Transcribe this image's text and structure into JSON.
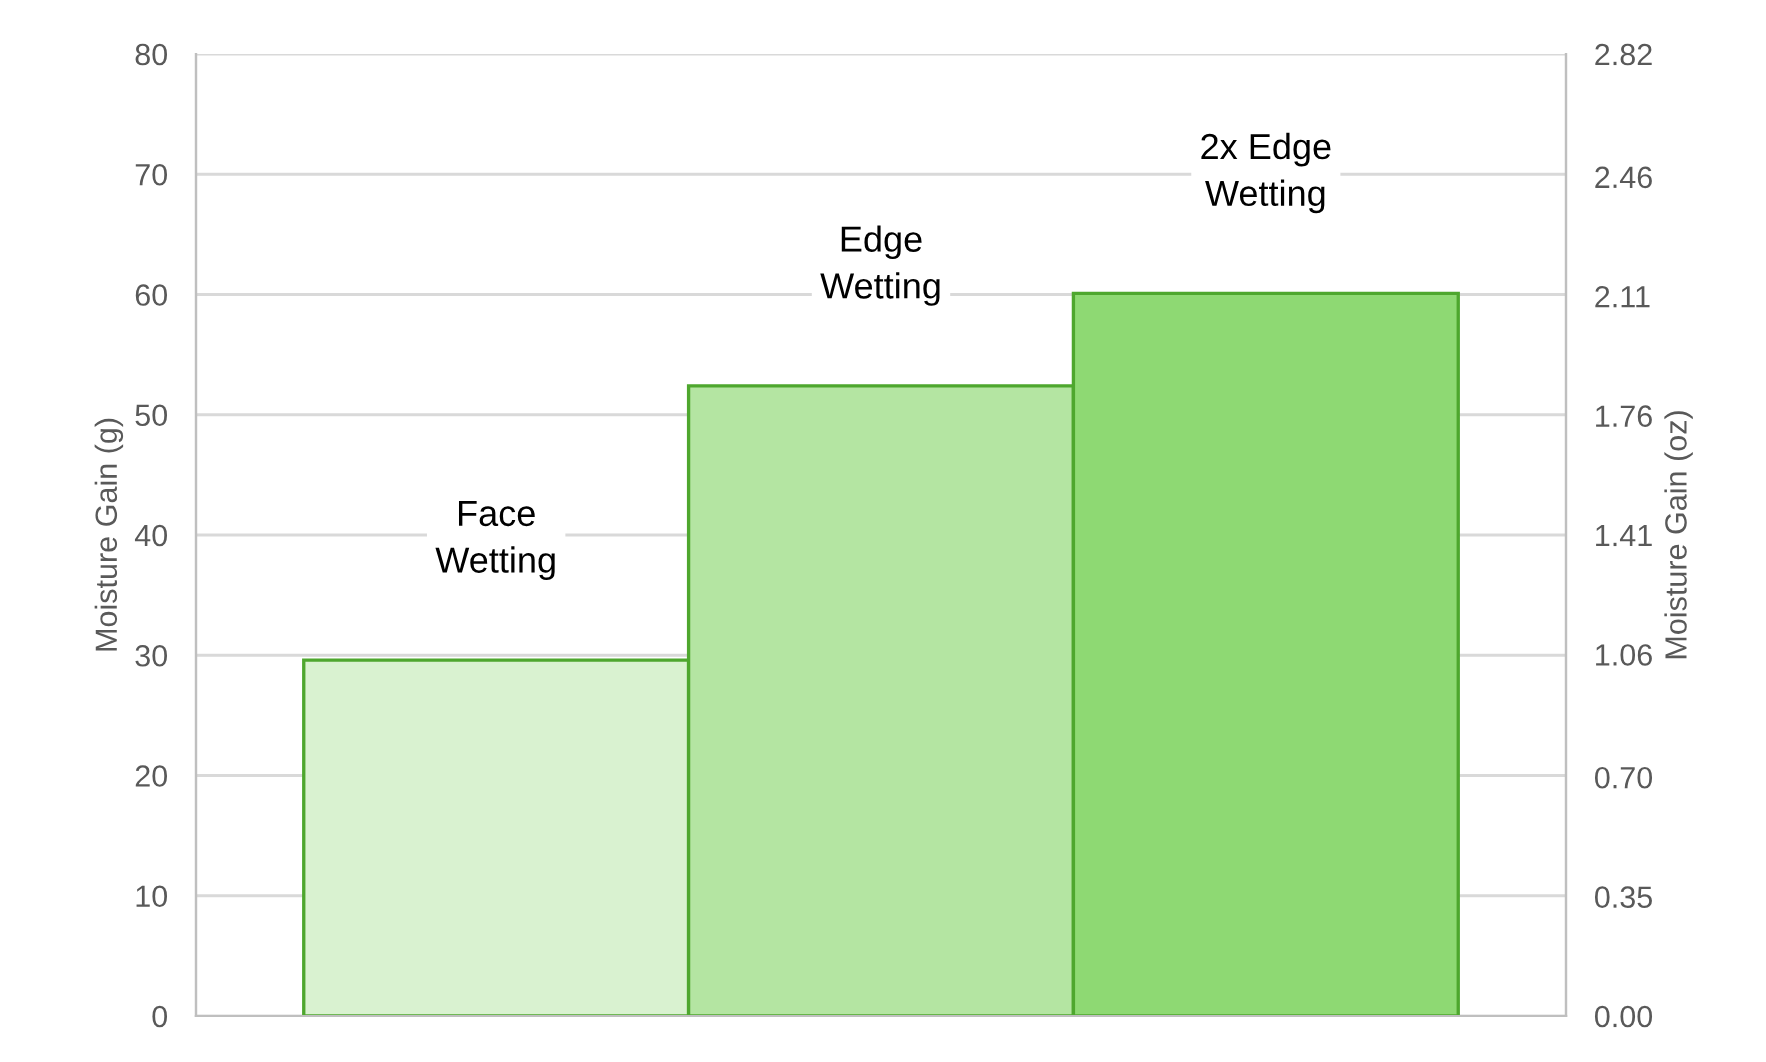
{
  "chart_data": {
    "type": "bar",
    "categories": [
      "Face\nWetting",
      "Edge\nWetting",
      "2x Edge\nWetting"
    ],
    "values": [
      29.6,
      52.4,
      60.1
    ],
    "colors": [
      "#d9f2d0",
      "#b4e5a2",
      "#8ed973"
    ],
    "ylabel": "Moisture Gain (g)",
    "y2label": "Moisture Gain (oz)",
    "ylim": [
      0,
      80
    ],
    "yticks": [
      0,
      10,
      20,
      30,
      40,
      50,
      60,
      70,
      80
    ],
    "y2lim": [
      0,
      2.82
    ],
    "y2ticks": [
      {
        "value": 0,
        "label": "0.00"
      },
      0.35,
      {
        "value": 0.7,
        "label": "0.70"
      },
      1.06,
      1.41,
      1.76,
      2.11,
      2.46,
      2.82
    ],
    "grid": "y"
  }
}
